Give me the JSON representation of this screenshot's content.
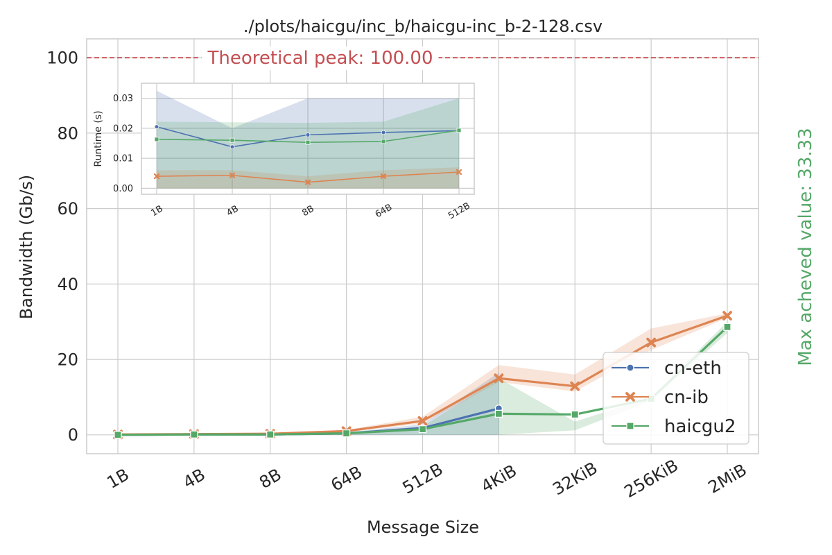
{
  "chart_data": [
    {
      "type": "line",
      "title": "./plots/haicgu/inc_b/haicgu-inc_b-2-128.csv",
      "xlabel": "Message Size",
      "ylabel": "Bandwidth (Gb/s)",
      "categories": [
        "1B",
        "4B",
        "8B",
        "64B",
        "512B",
        "4KiB",
        "32KiB",
        "256KiB",
        "2MiB"
      ],
      "ylim": [
        -5,
        105
      ],
      "yticks": [
        0,
        20,
        40,
        60,
        80,
        100
      ],
      "grid": true,
      "legend_position": "lower-right",
      "peak_line": {
        "value": 100,
        "label": "Theoretical peak: 100.00",
        "color": "#c44e52"
      },
      "right_label": {
        "text": "Max acheved value: 33.33",
        "color": "#55a868"
      },
      "series": [
        {
          "name": "cn-eth",
          "color": "#4c72b0",
          "marker": "circle",
          "values": [
            0.0,
            0.1,
            0.1,
            0.4,
            1.8,
            7.0,
            null,
            null,
            null
          ],
          "band_low": [
            0.0,
            0.0,
            0.0,
            0.0,
            0.0,
            0.0,
            null,
            null,
            null
          ],
          "band_high": [
            0.1,
            0.2,
            0.3,
            0.7,
            2.8,
            16.5,
            null,
            null,
            null
          ]
        },
        {
          "name": "cn-ib",
          "color": "#dd8452",
          "marker": "x",
          "values": [
            0.1,
            0.2,
            0.3,
            1.0,
            3.7,
            15.0,
            12.9,
            24.5,
            31.6
          ],
          "band_low": [
            0.0,
            0.1,
            0.2,
            0.7,
            3.0,
            14.0,
            11.5,
            22.5,
            31.0
          ],
          "band_high": [
            0.2,
            0.4,
            0.5,
            1.3,
            4.8,
            18.5,
            16.0,
            28.2,
            32.2
          ]
        },
        {
          "name": "haicgu2",
          "color": "#55a868",
          "marker": "square",
          "values": [
            0.0,
            0.1,
            0.1,
            0.4,
            1.5,
            5.6,
            5.4,
            9.6,
            28.6
          ],
          "band_low": [
            0.0,
            0.0,
            0.0,
            0.0,
            0.0,
            0.0,
            1.2,
            9.0,
            27.0
          ],
          "band_high": [
            0.1,
            0.2,
            0.3,
            0.6,
            2.2,
            15.0,
            3.5,
            10.0,
            30.0
          ]
        }
      ]
    },
    {
      "type": "line",
      "title": "",
      "xlabel": "",
      "ylabel": "Runtime (s)",
      "categories": [
        "1B",
        "4B",
        "8B",
        "64B",
        "512B"
      ],
      "ylim": [
        -0.002,
        0.035
      ],
      "yticks": [
        0.0,
        0.01,
        0.02,
        0.03
      ],
      "ytick_labels": [
        "0.00",
        "0.01",
        "0.02",
        "0.03"
      ],
      "grid": true,
      "series": [
        {
          "name": "cn-eth",
          "color": "#4c72b0",
          "marker": "circle",
          "values": [
            0.0205,
            0.0138,
            0.0178,
            0.0186,
            0.0192
          ],
          "band_low": [
            0.0,
            0.0,
            0.0,
            0.0,
            0.0
          ],
          "band_high": [
            0.0325,
            0.02,
            0.03,
            0.03,
            0.03
          ]
        },
        {
          "name": "cn-ib",
          "color": "#dd8452",
          "marker": "x",
          "values": [
            0.004,
            0.0043,
            0.002,
            0.004,
            0.0054
          ],
          "band_low": [
            0.0,
            0.0,
            0.0,
            0.0,
            0.0
          ],
          "band_high": [
            0.006,
            0.006,
            0.004,
            0.006,
            0.007
          ]
        },
        {
          "name": "haicgu2",
          "color": "#55a868",
          "marker": "square",
          "values": [
            0.0163,
            0.016,
            0.0153,
            0.0156,
            0.0193
          ],
          "band_low": [
            0.0,
            0.0,
            0.0,
            0.0,
            0.0
          ],
          "band_high": [
            0.0222,
            0.022,
            0.0218,
            0.0222,
            0.03
          ]
        }
      ]
    }
  ]
}
